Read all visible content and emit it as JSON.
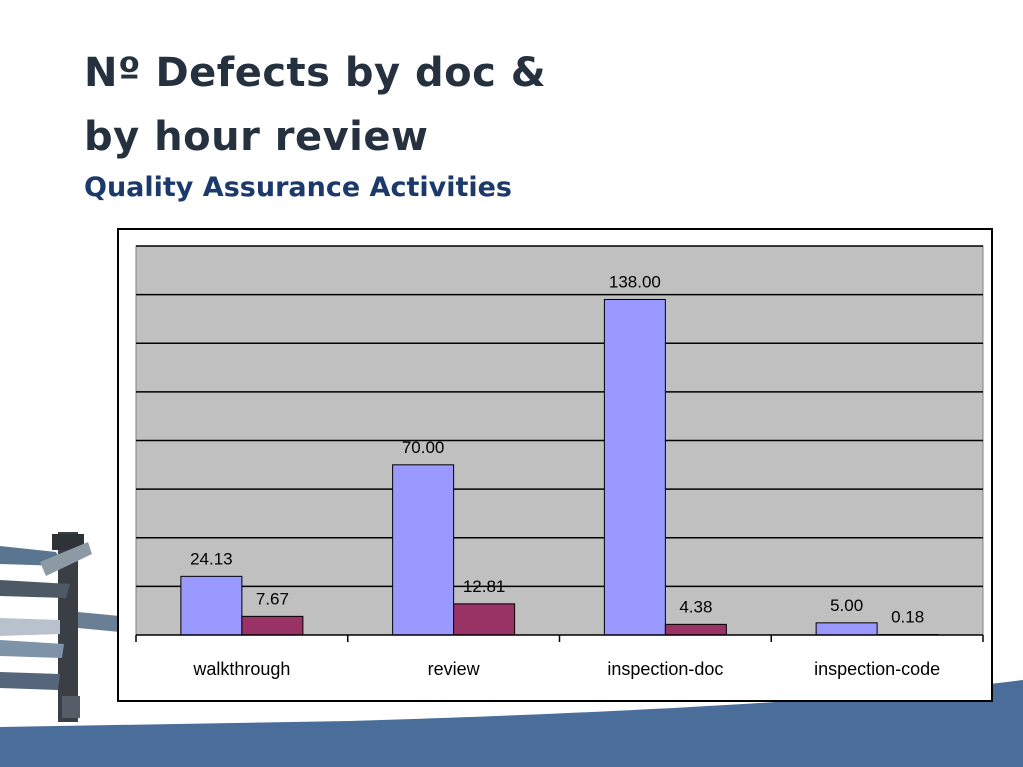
{
  "slide": {
    "title_line1": "Nº Defects by doc &",
    "title_line2": "by hour review",
    "subtitle": "Quality Assurance Activities"
  },
  "colors": {
    "title": "#26313f",
    "subtitle": "#1b3a6b",
    "plot_background": "#c0c0c0",
    "footer_band": "#4a6d9a"
  },
  "chart_data": {
    "type": "bar",
    "categories": [
      "walkthrough",
      "review",
      "inspection-doc",
      "inspection-code"
    ],
    "series": [
      {
        "values": [
          24.13,
          70.0,
          138.0,
          5.0
        ],
        "labels": [
          "24.13",
          "70.00",
          "138.00",
          "5.00"
        ],
        "color": "#9999ff"
      },
      {
        "values": [
          7.67,
          12.81,
          4.38,
          0.18
        ],
        "labels": [
          "7.67",
          "12.81",
          "4.38",
          "0.18"
        ],
        "color": "#993366"
      }
    ],
    "ylim": [
      0,
      160
    ],
    "grid": true,
    "gridline_step": 20,
    "legend": "none"
  }
}
